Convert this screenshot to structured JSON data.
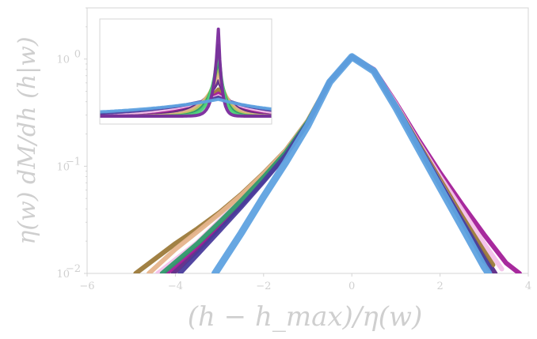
{
  "chart_data": {
    "type": "line",
    "title": "",
    "xlabel": "(h − h_max)/η(w)",
    "ylabel": "η(w) dM/dh (h|w)",
    "x_scale": "linear",
    "y_scale": "log",
    "xlim": [
      -6,
      4
    ],
    "ylim": [
      0.01,
      3.0
    ],
    "x_ticks": [
      -6,
      -4,
      -2,
      0,
      2,
      4
    ],
    "x_tick_labels": [
      "−6",
      "−4",
      "−2",
      "0",
      "2",
      "4"
    ],
    "y_ticks": [
      0.01,
      0.1,
      1
    ],
    "y_tick_labels": [
      "10",
      "10",
      "10"
    ],
    "y_tick_exponents": [
      "−2",
      "−1",
      "0"
    ],
    "grid": false,
    "legend": "none",
    "main_series": [
      {
        "color": "#5e2a86",
        "values": [
          [
            -4.05,
            0.01
          ],
          [
            -3.5,
            0.0163
          ],
          [
            -3,
            0.027
          ],
          [
            -2.5,
            0.044
          ],
          [
            -2,
            0.074
          ],
          [
            -1.5,
            0.129
          ],
          [
            -1,
            0.255
          ],
          [
            -0.5,
            0.62
          ],
          [
            0,
            1.05
          ],
          [
            0.5,
            0.78
          ],
          [
            1,
            0.36
          ],
          [
            1.5,
            0.155
          ],
          [
            2,
            0.067
          ],
          [
            2.5,
            0.03
          ],
          [
            3,
            0.0145
          ],
          [
            3.25,
            0.01
          ]
        ]
      },
      {
        "color": "#a21d98",
        "values": [
          [
            -4.2,
            0.01
          ],
          [
            -3.5,
            0.018
          ],
          [
            -3,
            0.029
          ],
          [
            -2.5,
            0.047
          ],
          [
            -2,
            0.078
          ],
          [
            -1.5,
            0.133
          ],
          [
            -1,
            0.258
          ],
          [
            -0.5,
            0.62
          ],
          [
            0,
            1.06
          ],
          [
            0.5,
            0.8
          ],
          [
            1,
            0.39
          ],
          [
            1.5,
            0.18
          ],
          [
            2,
            0.087
          ],
          [
            2.5,
            0.044
          ],
          [
            3,
            0.023
          ],
          [
            3.5,
            0.0125
          ],
          [
            3.8,
            0.01
          ]
        ]
      },
      {
        "color": "#f3c1ea",
        "values": [
          [
            -4.4,
            0.01
          ],
          [
            -3.5,
            0.0195
          ],
          [
            -3,
            0.031
          ],
          [
            -2.5,
            0.049
          ],
          [
            -2,
            0.08
          ],
          [
            -1.5,
            0.135
          ],
          [
            -1,
            0.26
          ],
          [
            -0.5,
            0.62
          ],
          [
            0,
            1.05
          ],
          [
            0.5,
            0.79
          ],
          [
            1,
            0.38
          ],
          [
            1.5,
            0.17
          ],
          [
            2,
            0.08
          ],
          [
            2.5,
            0.039
          ],
          [
            3,
            0.019
          ],
          [
            3.4,
            0.011
          ]
        ]
      },
      {
        "color": "#9c7a3a",
        "values": [
          [
            -4.9,
            0.01
          ],
          [
            -4,
            0.019
          ],
          [
            -3.5,
            0.0262
          ],
          [
            -3,
            0.037
          ],
          [
            -2.5,
            0.055
          ],
          [
            -2,
            0.086
          ],
          [
            -1.5,
            0.14
          ],
          [
            -1,
            0.265
          ],
          [
            -0.5,
            0.62
          ],
          [
            0,
            1.05
          ],
          [
            0.5,
            0.78
          ],
          [
            1,
            0.37
          ],
          [
            1.5,
            0.165
          ],
          [
            2,
            0.075
          ],
          [
            2.5,
            0.034
          ],
          [
            3,
            0.016
          ],
          [
            3.2,
            0.012
          ]
        ]
      },
      {
        "color": "#e6b48c",
        "values": [
          [
            -4.6,
            0.01
          ],
          [
            -4,
            0.0168
          ],
          [
            -3.5,
            0.0245
          ],
          [
            -3,
            0.036
          ],
          [
            -2.5,
            0.054
          ],
          [
            -2,
            0.085
          ],
          [
            -1.5,
            0.139
          ],
          [
            -1,
            0.264
          ],
          [
            -0.5,
            0.62
          ],
          [
            0,
            1.05
          ],
          [
            0.5,
            0.78
          ],
          [
            1,
            0.36
          ],
          [
            1.5,
            0.16
          ],
          [
            2,
            0.071
          ],
          [
            2.5,
            0.031
          ],
          [
            3,
            0.0135
          ],
          [
            3.1,
            0.011
          ]
        ]
      },
      {
        "color": "#2f9a6c",
        "values": [
          [
            -4.3,
            0.01
          ],
          [
            -3.5,
            0.019
          ],
          [
            -3,
            0.03
          ],
          [
            -2.5,
            0.048
          ],
          [
            -2,
            0.079
          ],
          [
            -1.5,
            0.134
          ],
          [
            -1,
            0.259
          ],
          [
            -0.5,
            0.62
          ],
          [
            0,
            1.05
          ],
          [
            0.5,
            0.78
          ],
          [
            1,
            0.36
          ],
          [
            1.5,
            0.155
          ],
          [
            2,
            0.068
          ],
          [
            2.5,
            0.03
          ],
          [
            3,
            0.013
          ]
        ]
      },
      {
        "color": "#4a3c9c",
        "values": [
          [
            -3.9,
            0.01
          ],
          [
            -3.5,
            0.015
          ],
          [
            -3,
            0.025
          ],
          [
            -2.5,
            0.042
          ],
          [
            -2,
            0.072
          ],
          [
            -1.5,
            0.126
          ],
          [
            -1,
            0.252
          ],
          [
            -0.5,
            0.62
          ],
          [
            0,
            1.05
          ],
          [
            0.5,
            0.78
          ],
          [
            1,
            0.365
          ],
          [
            1.5,
            0.16
          ],
          [
            2,
            0.07
          ],
          [
            2.5,
            0.031
          ],
          [
            3,
            0.0138
          ],
          [
            3.15,
            0.011
          ]
        ]
      },
      {
        "color": "#5fa2e0",
        "values": [
          [
            -3.1,
            0.01
          ],
          [
            -2.5,
            0.024
          ],
          [
            -2,
            0.052
          ],
          [
            -1.5,
            0.108
          ],
          [
            -1,
            0.238
          ],
          [
            -0.5,
            0.61
          ],
          [
            0,
            1.05
          ],
          [
            0.5,
            0.77
          ],
          [
            1,
            0.35
          ],
          [
            1.5,
            0.148
          ],
          [
            2,
            0.063
          ],
          [
            2.5,
            0.027
          ],
          [
            3,
            0.0115
          ],
          [
            3.1,
            0.01
          ]
        ]
      }
    ],
    "inset": {
      "xlabel": "",
      "ylabel": "",
      "series": [
        {
          "color": "#9c7a3a",
          "width": 0.9,
          "peak": 1.0
        },
        {
          "color": "#a21d98",
          "width": 1.2,
          "peak": 0.85
        },
        {
          "color": "#f3c1ea",
          "width": 1.6,
          "peak": 0.75
        },
        {
          "color": "#4a3c9c",
          "width": 2.2,
          "peak": 0.7
        },
        {
          "color": "#5e2a86",
          "width": 0.65,
          "peak": 1.3
        },
        {
          "color": "#e6b48c",
          "width": 0.5,
          "peak": 1.6
        },
        {
          "color": "#b7c65a",
          "width": 0.38,
          "peak": 1.9
        },
        {
          "color": "#2f9a6c",
          "width": 0.3,
          "peak": 2.2
        },
        {
          "color": "#4fd27a",
          "width": 0.24,
          "peak": 2.6
        },
        {
          "color": "#7a2a9c",
          "width": 0.16,
          "peak": 3.2
        },
        {
          "color": "#5fa2e0",
          "width": 3.0,
          "peak": 0.62
        }
      ]
    }
  }
}
